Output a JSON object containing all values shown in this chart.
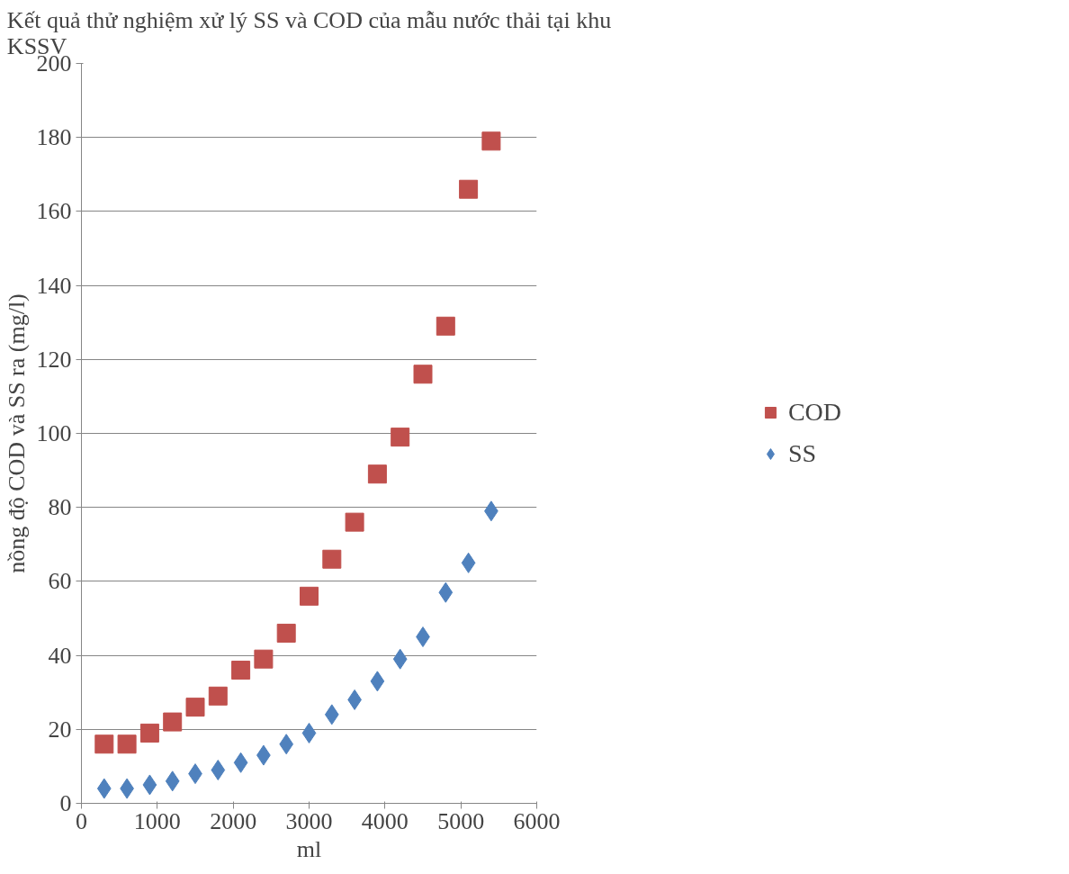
{
  "chart_data": {
    "type": "scatter",
    "title": "Kết quả thử nghiệm xử lý SS và COD của mẫu nước thải tại khu KSSV",
    "xlabel": "ml",
    "ylabel": "nồng độ COD và SS ra (mg/l)",
    "x": [
      300,
      600,
      900,
      1200,
      1500,
      1800,
      2100,
      2400,
      2700,
      3000,
      3300,
      3600,
      3900,
      4200,
      4500,
      4800,
      5100,
      5400
    ],
    "series": [
      {
        "name": "COD",
        "color": "#c0504d",
        "marker": "square",
        "values": [
          16,
          16,
          19,
          22,
          26,
          29,
          36,
          39,
          46,
          56,
          66,
          76,
          89,
          99,
          116,
          129,
          166,
          179
        ]
      },
      {
        "name": "SS",
        "color": "#4f81bd",
        "marker": "diamond",
        "values": [
          4,
          4,
          5,
          6,
          8,
          9,
          11,
          13,
          16,
          19,
          24,
          28,
          33,
          39,
          45,
          57,
          65,
          79
        ]
      }
    ],
    "xlim": [
      0,
      6000
    ],
    "xticks": [
      0,
      1000,
      2000,
      3000,
      4000,
      5000,
      6000
    ],
    "ylim": [
      0,
      200
    ],
    "yticks": [
      0,
      20,
      40,
      60,
      80,
      100,
      120,
      140,
      160,
      180,
      200
    ],
    "grid": "y",
    "legend": "right"
  }
}
